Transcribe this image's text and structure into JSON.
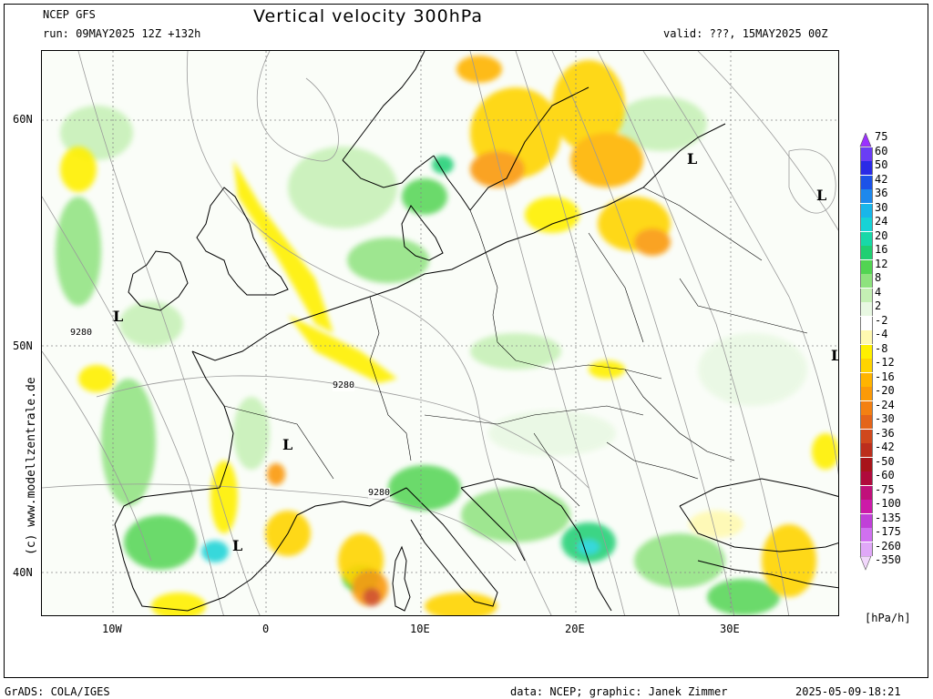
{
  "header": {
    "model": "NCEP GFS",
    "run": "run: 09MAY2025 12Z +132h",
    "title": "Vertical velocity 300hPa",
    "valid": "valid: ???, 15MAY2025 00Z"
  },
  "footer": {
    "left": "GrADS: COLA/IGES",
    "credit": "data: NCEP; graphic: Janek Zimmer",
    "timestamp": "2025-05-09-18:21"
  },
  "watermark": "(c) www.modellzentrale.de",
  "map": {
    "lat_labels": [
      "60N",
      "50N",
      "40N"
    ],
    "lon_labels": [
      "10W",
      "0",
      "10E",
      "20E",
      "30E"
    ],
    "low_markers": [
      "L",
      "L",
      "L",
      "L",
      "L",
      "L"
    ],
    "contour_labels": [
      "9280",
      "9280",
      "9280"
    ]
  },
  "colorbar": {
    "unit": "[hPa/h]",
    "entries": [
      {
        "label": "75",
        "color": "#9b30ff"
      },
      {
        "label": "60",
        "color": "#6a3df5"
      },
      {
        "label": "50",
        "color": "#2a2ae6"
      },
      {
        "label": "42",
        "color": "#1c52e8"
      },
      {
        "label": "36",
        "color": "#1e88ec"
      },
      {
        "label": "30",
        "color": "#19b6ea"
      },
      {
        "label": "24",
        "color": "#17d2d6"
      },
      {
        "label": "20",
        "color": "#18d8a8"
      },
      {
        "label": "16",
        "color": "#1fcf72"
      },
      {
        "label": "12",
        "color": "#52d452"
      },
      {
        "label": "8",
        "color": "#8ee27e"
      },
      {
        "label": "4",
        "color": "#c4f0b4"
      },
      {
        "label": "2",
        "color": "#e8f8e2"
      },
      {
        "label": "-2",
        "color": "#ffffff"
      },
      {
        "label": "-4",
        "color": "#fff9b0"
      },
      {
        "label": "-8",
        "color": "#fff000"
      },
      {
        "label": "-12",
        "color": "#ffd400"
      },
      {
        "label": "-16",
        "color": "#ffb400"
      },
      {
        "label": "-20",
        "color": "#fb9a08"
      },
      {
        "label": "-24",
        "color": "#f38012"
      },
      {
        "label": "-30",
        "color": "#e4641a"
      },
      {
        "label": "-36",
        "color": "#d0481c"
      },
      {
        "label": "-42",
        "color": "#bc2e1c"
      },
      {
        "label": "-50",
        "color": "#a8141a"
      },
      {
        "label": "-60",
        "color": "#b00a3c"
      },
      {
        "label": "-75",
        "color": "#c0107a"
      },
      {
        "label": "-100",
        "color": "#cc1aa8"
      },
      {
        "label": "-135",
        "color": "#c040d8"
      },
      {
        "label": "-175",
        "color": "#d070f0"
      },
      {
        "label": "-260",
        "color": "#e0a8f8"
      },
      {
        "label": "-350",
        "color": "#f2d8fc"
      }
    ]
  }
}
